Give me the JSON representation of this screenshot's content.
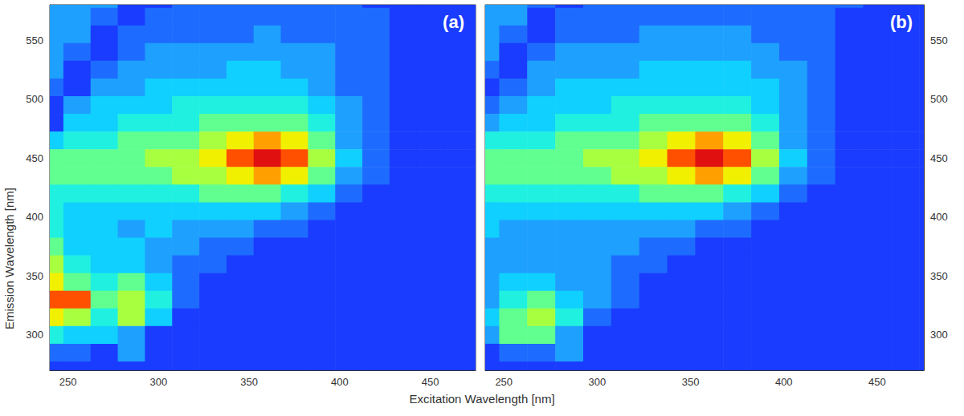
{
  "chart_data": [
    {
      "type": "heatmap",
      "title": "(a)",
      "xlabel": "Excitation Wavelength [nm]",
      "ylabel": "Emission Wavelength [nm]",
      "x": [
        240,
        255,
        270,
        285,
        300,
        315,
        330,
        345,
        360,
        375,
        390,
        405,
        420,
        435,
        450,
        465,
        480
      ],
      "y": [
        585,
        570,
        555,
        540,
        525,
        510,
        495,
        480,
        465,
        450,
        435,
        420,
        405,
        390,
        375,
        360,
        345,
        330,
        315,
        300,
        285,
        270
      ],
      "cells": [
        [
          2,
          2,
          2,
          0,
          0,
          1,
          1,
          1,
          1,
          1,
          1,
          1,
          0,
          0,
          0,
          0,
          0
        ],
        [
          2,
          2,
          1,
          0,
          1,
          1,
          1,
          1,
          1,
          1,
          1,
          1,
          1,
          0,
          0,
          0,
          0
        ],
        [
          2,
          2,
          0,
          1,
          1,
          1,
          1,
          1,
          2,
          1,
          1,
          1,
          1,
          0,
          0,
          0,
          0
        ],
        [
          2,
          1,
          0,
          1,
          2,
          2,
          2,
          2,
          2,
          2,
          2,
          1,
          1,
          0,
          0,
          0,
          0
        ],
        [
          2,
          0,
          1,
          2,
          2,
          2,
          2,
          3,
          3,
          2,
          2,
          1,
          1,
          0,
          0,
          0,
          0
        ],
        [
          1,
          0,
          2,
          2,
          3,
          3,
          3,
          3,
          3,
          3,
          2,
          1,
          1,
          0,
          0,
          0,
          0
        ],
        [
          0,
          2,
          3,
          3,
          3,
          4,
          4,
          4,
          4,
          4,
          3,
          2,
          1,
          0,
          0,
          0,
          0
        ],
        [
          0,
          3,
          3,
          4,
          4,
          4,
          5,
          5,
          5,
          5,
          4,
          2,
          1,
          0,
          0,
          0,
          0
        ],
        [
          3,
          4,
          4,
          5,
          5,
          5,
          6,
          7,
          8,
          7,
          5,
          2,
          1,
          0,
          0,
          0,
          0
        ],
        [
          5,
          5,
          5,
          5,
          6,
          6,
          7,
          9,
          10,
          9,
          6,
          3,
          1,
          0,
          0,
          0,
          0
        ],
        [
          5,
          5,
          5,
          5,
          5,
          6,
          6,
          7,
          8,
          7,
          5,
          2,
          1,
          0,
          0,
          0,
          0
        ],
        [
          4,
          4,
          4,
          4,
          4,
          4,
          5,
          5,
          5,
          4,
          3,
          1,
          0,
          0,
          0,
          0,
          0
        ],
        [
          4,
          3,
          3,
          3,
          3,
          3,
          3,
          3,
          3,
          2,
          1,
          0,
          0,
          0,
          0,
          0,
          0
        ],
        [
          4,
          3,
          3,
          2,
          3,
          2,
          2,
          2,
          1,
          1,
          0,
          0,
          0,
          0,
          0,
          0,
          0
        ],
        [
          5,
          3,
          3,
          3,
          2,
          2,
          1,
          1,
          0,
          0,
          0,
          0,
          0,
          0,
          0,
          0,
          0
        ],
        [
          6,
          4,
          3,
          3,
          2,
          1,
          1,
          0,
          0,
          0,
          0,
          0,
          0,
          0,
          0,
          0,
          0
        ],
        [
          7,
          5,
          4,
          5,
          3,
          1,
          0,
          0,
          0,
          0,
          0,
          0,
          0,
          0,
          0,
          0,
          0
        ],
        [
          9,
          9,
          5,
          6,
          4,
          1,
          0,
          0,
          0,
          0,
          0,
          0,
          0,
          0,
          0,
          0,
          0
        ],
        [
          7,
          6,
          4,
          6,
          3,
          0,
          0,
          0,
          0,
          0,
          0,
          0,
          0,
          0,
          0,
          0,
          0
        ],
        [
          4,
          3,
          3,
          2,
          0,
          0,
          0,
          0,
          0,
          0,
          0,
          0,
          0,
          0,
          0,
          0,
          0
        ],
        [
          1,
          1,
          0,
          2,
          0,
          0,
          0,
          0,
          0,
          0,
          0,
          0,
          0,
          0,
          0,
          0,
          0
        ],
        [
          0,
          0,
          0,
          0,
          0,
          0,
          0,
          0,
          0,
          0,
          0,
          0,
          0,
          0,
          0,
          0,
          0
        ]
      ],
      "zlim": [
        0,
        10
      ],
      "xlim": [
        240,
        475
      ],
      "xticks": [
        250,
        300,
        350,
        400,
        450
      ],
      "ylim": [
        270,
        580
      ],
      "yticks": [
        300,
        350,
        400,
        450,
        500,
        550
      ]
    },
    {
      "type": "heatmap",
      "title": "(b)",
      "x": [
        240,
        255,
        270,
        285,
        300,
        315,
        330,
        345,
        360,
        375,
        390,
        405,
        420,
        435,
        450,
        465,
        480
      ],
      "y": [
        585,
        570,
        555,
        540,
        525,
        510,
        495,
        480,
        465,
        450,
        435,
        420,
        405,
        390,
        375,
        360,
        345,
        330,
        315,
        300,
        285,
        270
      ],
      "cells": [
        [
          2,
          2,
          1,
          0,
          1,
          1,
          1,
          1,
          1,
          1,
          1,
          1,
          1,
          1,
          0,
          0,
          0
        ],
        [
          2,
          2,
          0,
          1,
          1,
          1,
          1,
          1,
          1,
          1,
          1,
          1,
          1,
          0,
          0,
          0,
          0
        ],
        [
          2,
          1,
          0,
          1,
          1,
          1,
          2,
          2,
          2,
          2,
          1,
          1,
          1,
          0,
          0,
          0,
          0
        ],
        [
          2,
          0,
          1,
          2,
          2,
          2,
          2,
          2,
          2,
          2,
          2,
          1,
          1,
          0,
          0,
          0,
          0
        ],
        [
          1,
          0,
          2,
          2,
          2,
          2,
          3,
          3,
          3,
          3,
          2,
          2,
          1,
          0,
          0,
          0,
          0
        ],
        [
          0,
          1,
          2,
          3,
          3,
          3,
          3,
          3,
          3,
          3,
          3,
          2,
          1,
          0,
          0,
          0,
          0
        ],
        [
          1,
          2,
          3,
          3,
          3,
          4,
          4,
          4,
          4,
          4,
          3,
          2,
          1,
          0,
          0,
          0,
          0
        ],
        [
          2,
          3,
          3,
          4,
          4,
          4,
          5,
          5,
          5,
          5,
          4,
          2,
          1,
          0,
          0,
          0,
          0
        ],
        [
          4,
          4,
          4,
          5,
          5,
          5,
          6,
          7,
          8,
          7,
          5,
          2,
          1,
          0,
          0,
          0,
          0
        ],
        [
          5,
          5,
          5,
          5,
          6,
          6,
          7,
          9,
          10,
          9,
          6,
          3,
          1,
          0,
          0,
          0,
          0
        ],
        [
          5,
          5,
          5,
          5,
          5,
          6,
          6,
          7,
          8,
          7,
          5,
          2,
          1,
          0,
          0,
          0,
          0
        ],
        [
          4,
          4,
          4,
          4,
          4,
          4,
          5,
          5,
          5,
          4,
          3,
          1,
          0,
          0,
          0,
          0,
          0
        ],
        [
          3,
          3,
          3,
          3,
          3,
          3,
          3,
          3,
          3,
          2,
          1,
          0,
          0,
          0,
          0,
          0,
          0
        ],
        [
          3,
          2,
          2,
          2,
          2,
          2,
          2,
          2,
          1,
          1,
          0,
          0,
          0,
          0,
          0,
          0,
          0
        ],
        [
          2,
          2,
          2,
          2,
          2,
          2,
          1,
          1,
          0,
          0,
          0,
          0,
          0,
          0,
          0,
          0,
          0
        ],
        [
          2,
          2,
          2,
          2,
          2,
          1,
          1,
          0,
          0,
          0,
          0,
          0,
          0,
          0,
          0,
          0,
          0
        ],
        [
          2,
          3,
          3,
          2,
          2,
          1,
          0,
          0,
          0,
          0,
          0,
          0,
          0,
          0,
          0,
          0,
          0
        ],
        [
          2,
          4,
          5,
          3,
          2,
          1,
          0,
          0,
          0,
          0,
          0,
          0,
          0,
          0,
          0,
          0,
          0
        ],
        [
          3,
          5,
          6,
          4,
          1,
          0,
          0,
          0,
          0,
          0,
          0,
          0,
          0,
          0,
          0,
          0,
          0
        ],
        [
          2,
          5,
          5,
          2,
          0,
          0,
          0,
          0,
          0,
          0,
          0,
          0,
          0,
          0,
          0,
          0,
          0
        ],
        [
          0,
          1,
          1,
          2,
          0,
          0,
          0,
          0,
          0,
          0,
          0,
          0,
          0,
          0,
          0,
          0,
          0
        ],
        [
          0,
          0,
          0,
          0,
          0,
          0,
          0,
          0,
          0,
          0,
          0,
          0,
          0,
          0,
          0,
          0,
          0
        ]
      ],
      "zlim": [
        0,
        10
      ],
      "xlim": [
        240,
        475
      ],
      "xticks": [
        250,
        300,
        350,
        400,
        450
      ],
      "ylim": [
        270,
        580
      ],
      "yticks": [
        300,
        350,
        400,
        450,
        500,
        550
      ]
    }
  ]
}
